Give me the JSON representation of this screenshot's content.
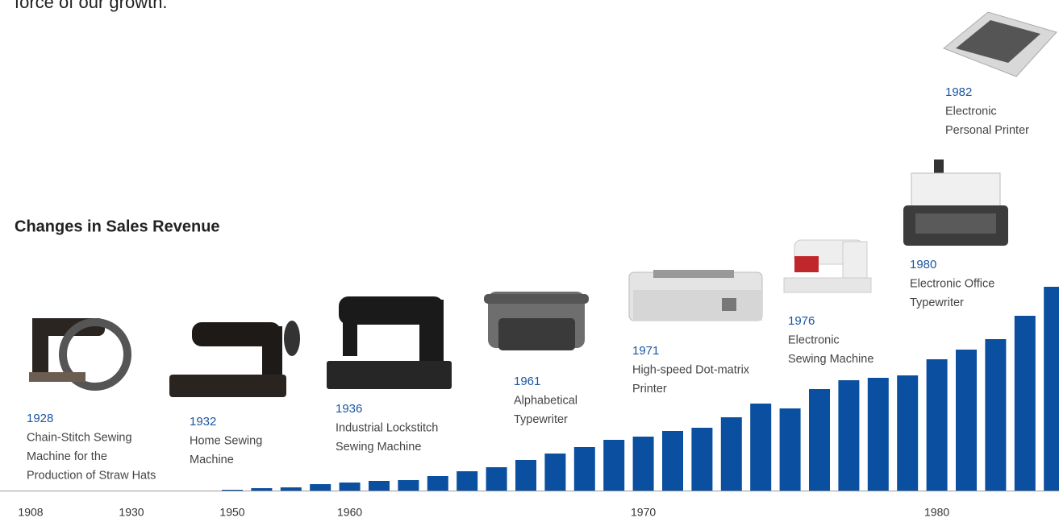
{
  "intro": "force of our growth.",
  "chart_data": {
    "type": "bar",
    "title": "Changes in Sales Revenue",
    "categories": [
      "1908",
      "1930",
      "1950",
      null,
      null,
      null,
      "1960",
      null,
      null,
      null,
      null,
      null,
      null,
      null,
      null,
      null,
      "1970",
      null,
      null,
      null,
      null,
      null,
      null,
      null,
      null,
      null,
      "1980",
      null,
      null,
      null,
      null
    ],
    "values": [
      0,
      0,
      1,
      3,
      4,
      8,
      10,
      12,
      13,
      18,
      24,
      29,
      38,
      46,
      54,
      63,
      67,
      74,
      78,
      91,
      108,
      102,
      126,
      137,
      140,
      143,
      163,
      175,
      188,
      217,
      253
    ],
    "color": "#0a4fa0",
    "ylim": [
      0,
      260
    ],
    "annotations": [
      {
        "year": "1928",
        "lines": [
          "Chain-Stitch Sewing",
          "Machine for the",
          "Production of Straw Hats"
        ]
      },
      {
        "year": "1932",
        "lines": [
          "Home Sewing",
          "Machine"
        ]
      },
      {
        "year": "1936",
        "lines": [
          "Industrial Lockstitch",
          "Sewing Machine"
        ]
      },
      {
        "year": "1961",
        "lines": [
          "Alphabetical",
          "Typewriter"
        ]
      },
      {
        "year": "1971",
        "lines": [
          "High-speed Dot-matrix",
          "Printer"
        ]
      },
      {
        "year": "1976",
        "lines": [
          "Electronic",
          "Sewing Machine"
        ]
      },
      {
        "year": "1980",
        "lines": [
          "Electronic Office",
          "Typewriter"
        ]
      },
      {
        "year": "1982",
        "lines": [
          "Electronic",
          "Personal Printer"
        ]
      }
    ]
  }
}
